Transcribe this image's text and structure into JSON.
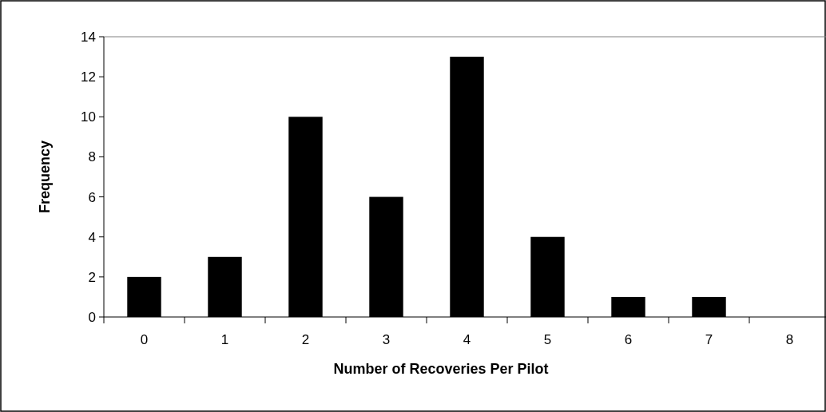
{
  "chart_data": {
    "type": "bar",
    "xlabel": "Number of Recoveries Per Pilot",
    "ylabel": "Frequency",
    "categories": [
      "0",
      "1",
      "2",
      "3",
      "4",
      "5",
      "6",
      "7",
      "8"
    ],
    "values": [
      2,
      3,
      10,
      6,
      13,
      4,
      1,
      1,
      0
    ],
    "color": "#000000",
    "ylim": [
      0,
      14
    ],
    "yticks": [
      0,
      2,
      4,
      6,
      8,
      10,
      12,
      14
    ],
    "grid": false
  }
}
